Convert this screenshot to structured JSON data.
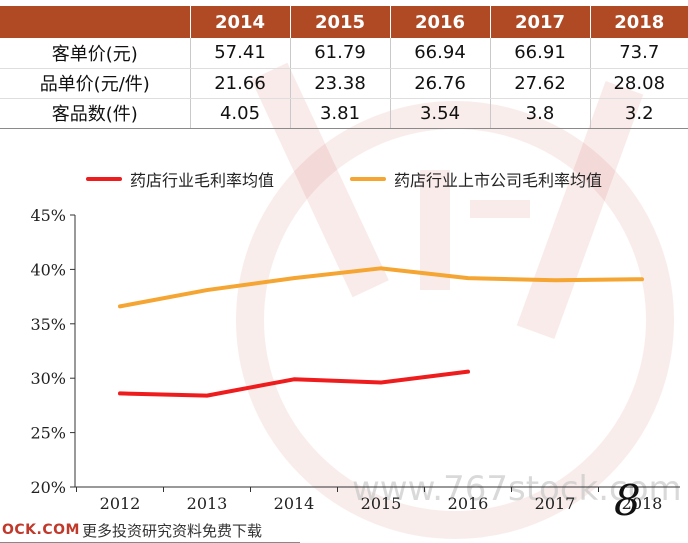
{
  "table": {
    "headers": [
      "",
      "2014",
      "2015",
      "2016",
      "2017",
      "2018"
    ],
    "rows": [
      {
        "label": "客单价(元)",
        "values": [
          "57.41",
          "61.79",
          "66.94",
          "66.91",
          "73.7"
        ]
      },
      {
        "label": "品单价(元/件)",
        "values": [
          "21.66",
          "23.38",
          "26.76",
          "27.62",
          "28.08"
        ]
      },
      {
        "label": "客品数(件)",
        "values": [
          "4.05",
          "3.81",
          "3.54",
          "3.8",
          "3.2"
        ]
      }
    ]
  },
  "legend": {
    "series1": "药店行业毛利率均值",
    "series2": "药店行业上市公司毛利率均值"
  },
  "colors": {
    "header_bg": "#b04a25",
    "series1": "#ee1c1c",
    "series2": "#f5a531"
  },
  "chart_data": {
    "type": "line",
    "categories": [
      "2012",
      "2013",
      "2014",
      "2015",
      "2016",
      "2017",
      "2018"
    ],
    "series": [
      {
        "name": "药店行业毛利率均值",
        "values": [
          28.6,
          28.4,
          29.9,
          29.6,
          30.6,
          null,
          null
        ]
      },
      {
        "name": "药店行业上市公司毛利率均值",
        "values": [
          36.6,
          38.1,
          39.2,
          40.1,
          39.2,
          39.0,
          39.1
        ]
      }
    ],
    "ylim": [
      20,
      45
    ],
    "yticks": [
      "20%",
      "25%",
      "30%",
      "35%",
      "40%",
      "45%"
    ],
    "ytick_values": [
      20,
      25,
      30,
      35,
      40,
      45
    ]
  },
  "watermark": "www.767stock.com",
  "footer": {
    "site": "OCK.COM",
    "text": "更多投资研究资料免费下载",
    "page": "8"
  }
}
